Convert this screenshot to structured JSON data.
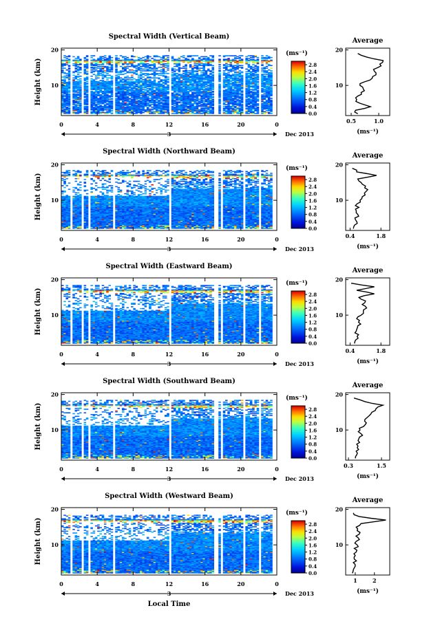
{
  "chart_data": [
    {
      "type": "heatmap",
      "title": "Spectral Width (Vertical Beam)",
      "ylabel": "Height (km)",
      "xticks": [
        "0",
        "4",
        "8",
        "12",
        "16",
        "20",
        "0"
      ],
      "yticks": [
        "10",
        "20"
      ],
      "xlim": [
        0,
        24
      ],
      "ylim": [
        1.5,
        20.5
      ],
      "date_label": "3",
      "month_label": "Dec 2013",
      "colorbar": {
        "unit": "(ms⁻¹)",
        "ticks": [
          "0.0",
          "0.4",
          "0.8",
          "1.2",
          "1.6",
          "2.0",
          "2.4",
          "2.8"
        ],
        "range": [
          0,
          3.0
        ]
      },
      "avg_profile": {
        "title": "Average",
        "xlabel": "(ms⁻¹)",
        "xticks": [
          "0.5",
          "1.0"
        ],
        "xtick_vals": [
          0.5,
          1.0
        ],
        "xlim": [
          0.4,
          1.2
        ],
        "yticks": [
          "10",
          "20"
        ],
        "heights": [
          2,
          3,
          4,
          5,
          6,
          7,
          8,
          9,
          10,
          11,
          12,
          13,
          14,
          15,
          16,
          17,
          18,
          19
        ],
        "values": [
          0.62,
          0.58,
          0.85,
          0.65,
          0.6,
          0.62,
          0.68,
          0.72,
          0.66,
          0.74,
          0.88,
          0.95,
          0.92,
          0.98,
          1.02,
          1.08,
          0.78,
          0.62
        ]
      }
    },
    {
      "type": "heatmap",
      "title": "Spectral Width (Northward Beam)",
      "ylabel": "Height (km)",
      "xticks": [
        "0",
        "4",
        "8",
        "12",
        "16",
        "20",
        "0"
      ],
      "yticks": [
        "10",
        "20"
      ],
      "xlim": [
        0,
        24
      ],
      "ylim": [
        1.5,
        20.5
      ],
      "date_label": "3",
      "month_label": "Dec 2013",
      "colorbar": {
        "unit": "(ms⁻¹)",
        "ticks": [
          "0.0",
          "0.4",
          "0.8",
          "1.2",
          "1.6",
          "2.0",
          "2.4",
          "2.8"
        ],
        "range": [
          0,
          3.0
        ]
      },
      "avg_profile": {
        "title": "Average",
        "xlabel": "(ms⁻¹)",
        "xticks": [
          "0.4",
          "1.8"
        ],
        "xtick_vals": [
          0.4,
          1.8
        ],
        "xlim": [
          0.2,
          2.2
        ],
        "yticks": [
          "10",
          "20"
        ],
        "heights": [
          2,
          3,
          4,
          5,
          6,
          7,
          8,
          9,
          10,
          11,
          12,
          13,
          14,
          15,
          16,
          17,
          18,
          19
        ],
        "values": [
          0.55,
          0.6,
          0.7,
          0.62,
          0.75,
          0.68,
          0.8,
          0.72,
          0.85,
          0.95,
          1.05,
          1.2,
          1.1,
          0.9,
          0.75,
          1.6,
          0.7,
          0.5
        ]
      }
    },
    {
      "type": "heatmap",
      "title": "Spectral Width (Eastward Beam)",
      "ylabel": "Height (km)",
      "xticks": [
        "0",
        "4",
        "8",
        "12",
        "16",
        "20",
        "0"
      ],
      "yticks": [
        "10",
        "20"
      ],
      "xlim": [
        0,
        24
      ],
      "ylim": [
        1.5,
        20.5
      ],
      "date_label": "3",
      "month_label": "Dec 2013",
      "colorbar": {
        "unit": "(ms⁻¹)",
        "ticks": [
          "0.0",
          "0.4",
          "0.8",
          "1.2",
          "1.6",
          "2.0",
          "2.4",
          "2.8"
        ],
        "range": [
          0,
          3.0
        ]
      },
      "avg_profile": {
        "title": "Average",
        "xlabel": "(ms⁻¹)",
        "xticks": [
          "0.4",
          "1.8"
        ],
        "xtick_vals": [
          0.4,
          1.8
        ],
        "xlim": [
          0.2,
          2.2
        ],
        "yticks": [
          "10",
          "20"
        ],
        "heights": [
          2,
          3,
          4,
          5,
          6,
          7,
          8,
          9,
          10,
          11,
          12,
          13,
          14,
          15,
          16,
          17,
          18,
          19
        ],
        "values": [
          0.6,
          0.65,
          0.72,
          0.62,
          0.7,
          0.75,
          0.78,
          0.7,
          0.9,
          1.0,
          1.15,
          0.95,
          1.1,
          0.8,
          1.5,
          0.7,
          1.5,
          0.45
        ]
      }
    },
    {
      "type": "heatmap",
      "title": "Spectral Width (Southward Beam)",
      "ylabel": "Height (km)",
      "xticks": [
        "0",
        "4",
        "8",
        "12",
        "16",
        "20",
        "0"
      ],
      "yticks": [
        "10",
        "20"
      ],
      "xlim": [
        0,
        24
      ],
      "ylim": [
        1.5,
        20.5
      ],
      "date_label": "3",
      "month_label": "Dec 2013",
      "colorbar": {
        "unit": "(ms⁻¹)",
        "ticks": [
          "0.0",
          "0.4",
          "0.8",
          "1.2",
          "1.6",
          "2.0",
          "2.4",
          "2.8"
        ],
        "range": [
          0,
          3.0
        ]
      },
      "avg_profile": {
        "title": "Average",
        "xlabel": "(ms⁻¹)",
        "xticks": [
          "0.3",
          "1.5"
        ],
        "xtick_vals": [
          0.3,
          1.5
        ],
        "xlim": [
          0.2,
          1.8
        ],
        "yticks": [
          "10",
          "20"
        ],
        "heights": [
          2,
          3,
          4,
          5,
          6,
          7,
          8,
          9,
          10,
          11,
          12,
          13,
          14,
          15,
          16,
          17,
          18,
          19
        ],
        "values": [
          0.55,
          0.6,
          0.58,
          0.62,
          0.6,
          0.65,
          0.7,
          0.75,
          0.72,
          0.85,
          0.95,
          0.9,
          1.05,
          1.15,
          1.3,
          1.55,
          0.9,
          0.5
        ]
      }
    },
    {
      "type": "heatmap",
      "title": "Spectral Width (Westward Beam)",
      "ylabel": "Height (km)",
      "xticks": [
        "0",
        "4",
        "8",
        "12",
        "16",
        "20",
        "0"
      ],
      "yticks": [
        "10",
        "20"
      ],
      "xlim": [
        0,
        24
      ],
      "ylim": [
        1.5,
        20.5
      ],
      "date_label": "3",
      "month_label": "Dec 2013",
      "xlabel": "Local Time",
      "colorbar": {
        "unit": "(ms⁻¹)",
        "ticks": [
          "0.0",
          "0.4",
          "0.8",
          "1.2",
          "1.6",
          "2.0",
          "2.4",
          "2.8"
        ],
        "range": [
          0,
          3.0
        ]
      },
      "avg_profile": {
        "title": "Average",
        "xlabel": "(ms⁻¹)",
        "xticks": [
          "1",
          "2"
        ],
        "xtick_vals": [
          1,
          2
        ],
        "xlim": [
          0.5,
          2.8
        ],
        "yticks": [
          "10",
          "20"
        ],
        "heights": [
          2,
          3,
          4,
          5,
          6,
          7,
          8,
          9,
          10,
          11,
          12,
          13,
          14,
          15,
          16,
          17,
          18,
          19
        ],
        "values": [
          0.85,
          0.9,
          1.0,
          0.9,
          0.95,
          1.0,
          1.05,
          0.95,
          1.1,
          1.05,
          1.15,
          1.2,
          1.1,
          1.05,
          1.3,
          2.6,
          1.2,
          0.9
        ]
      }
    }
  ]
}
